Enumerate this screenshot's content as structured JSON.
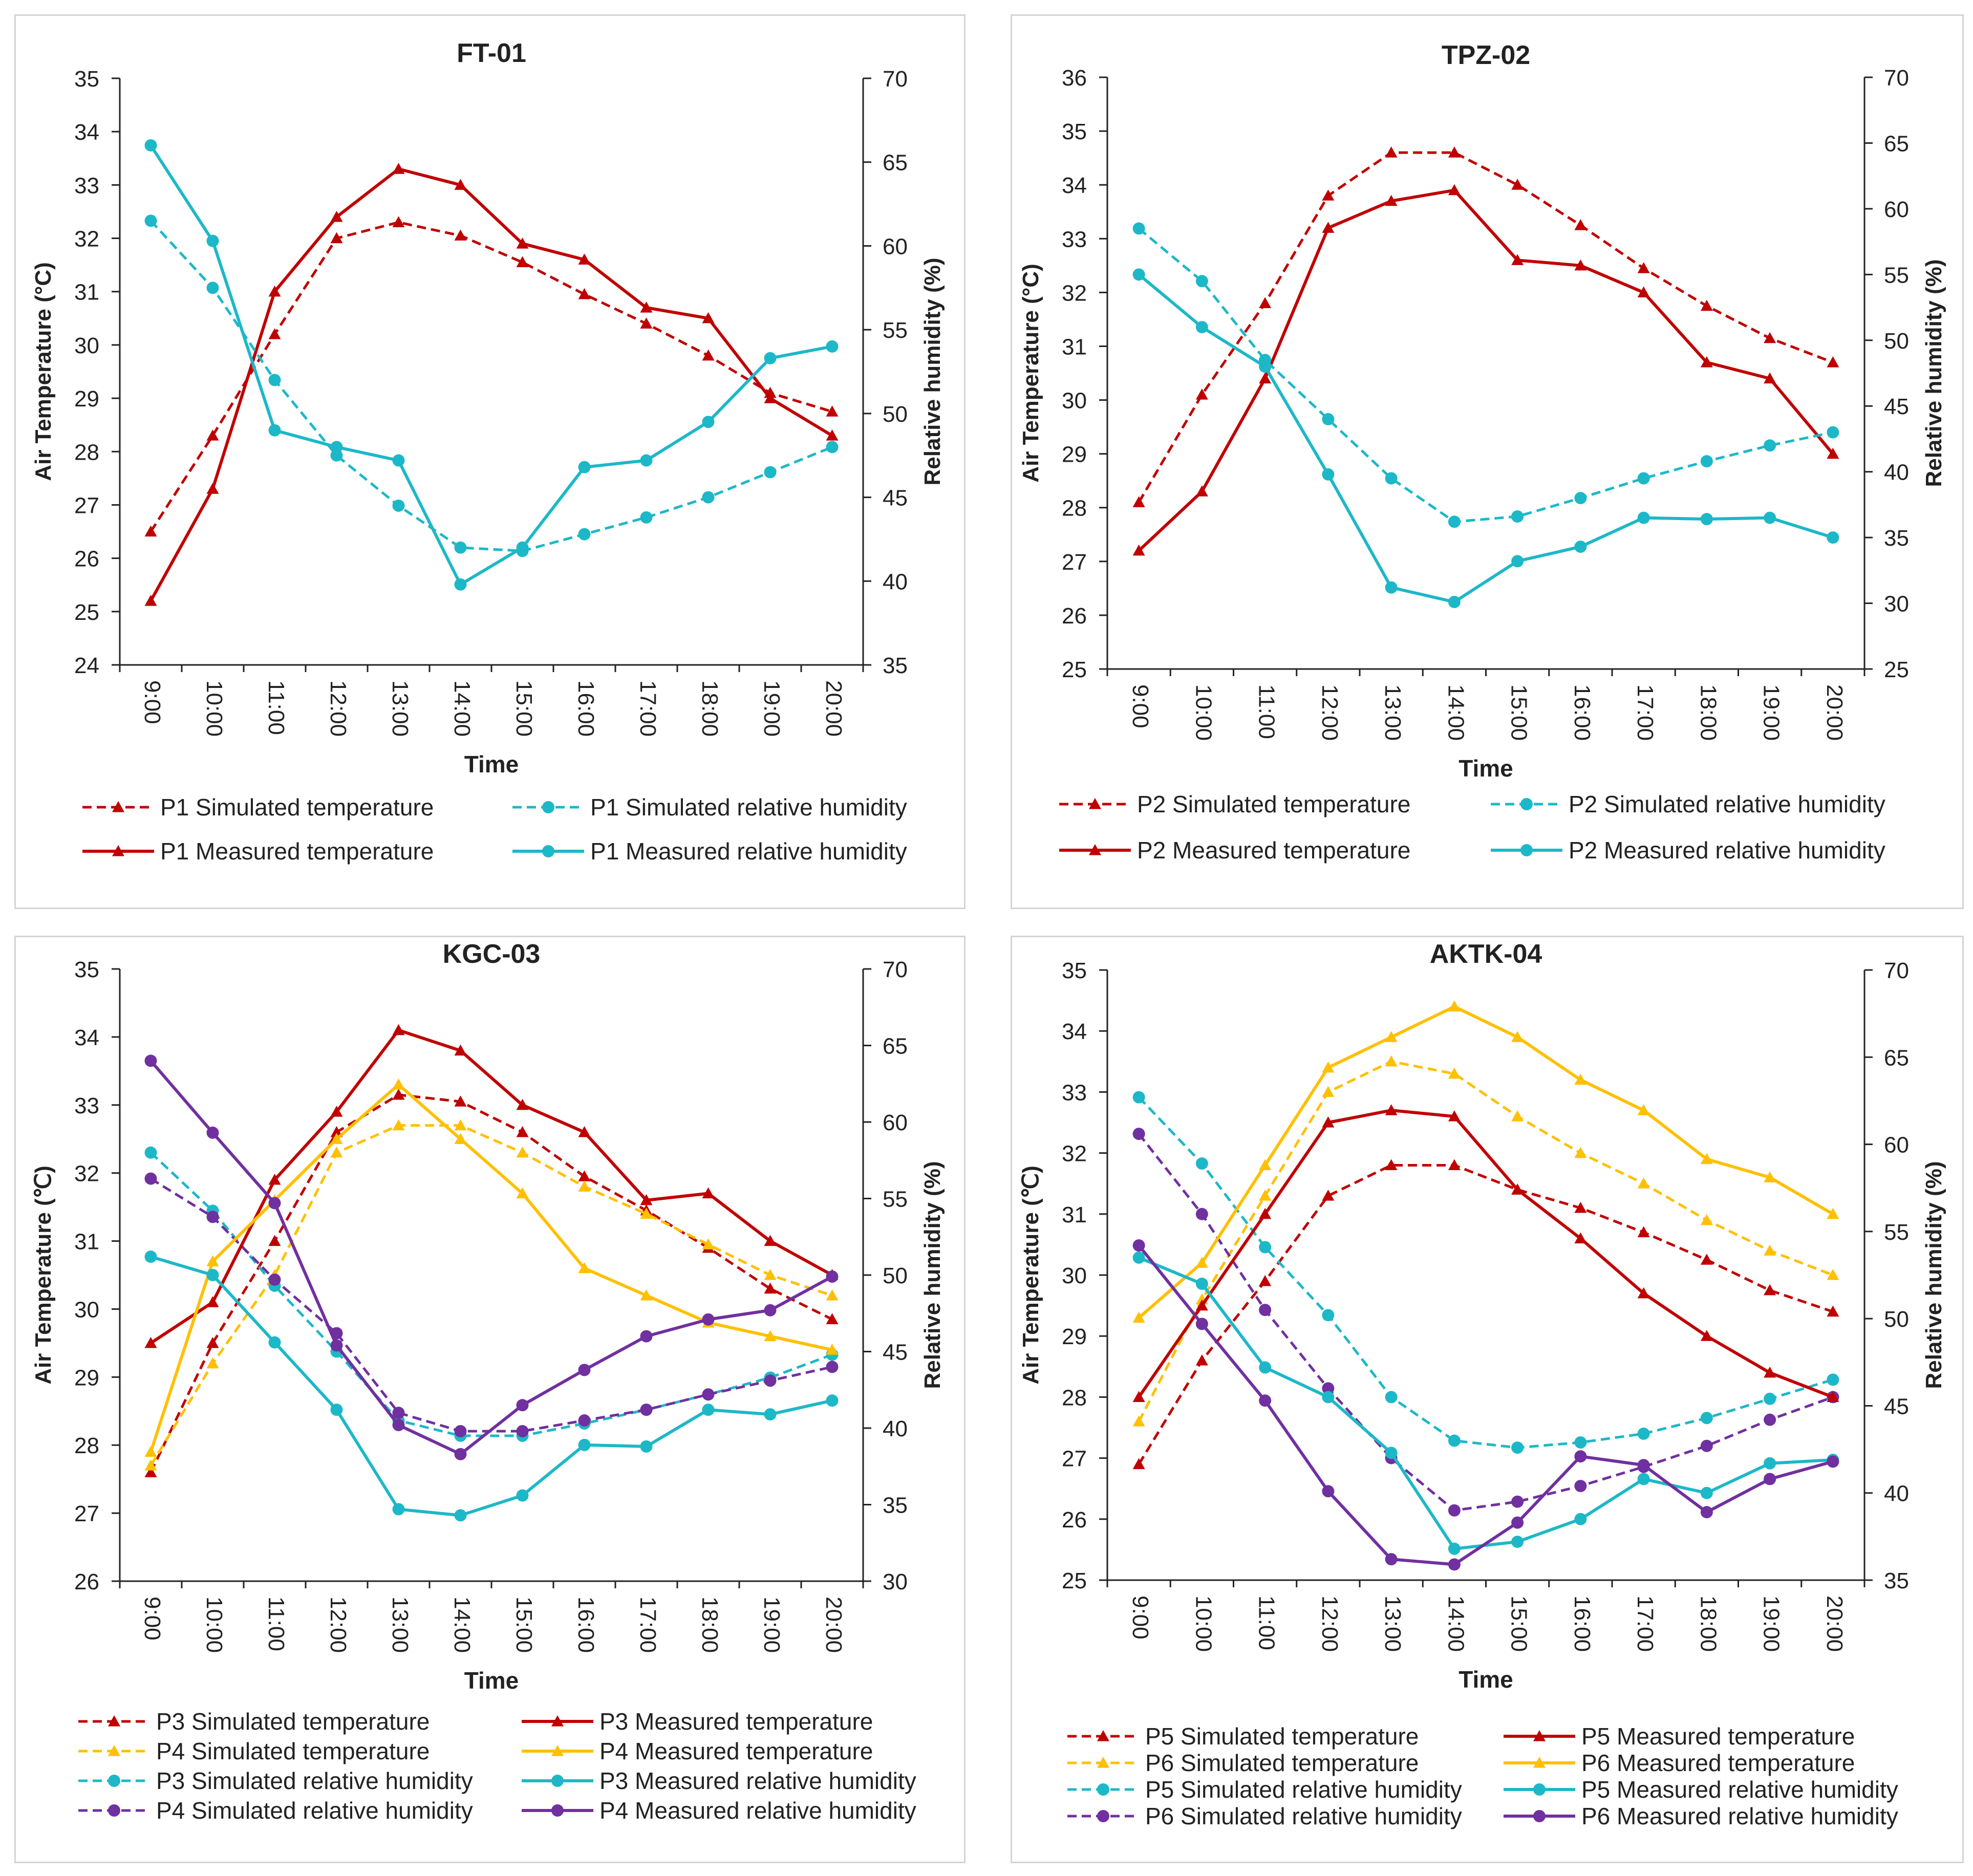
{
  "colors": {
    "red": "#C00000",
    "cyan": "#1CB8C8",
    "yellow": "#FFC000",
    "purple": "#7030A0",
    "axis": "#222222",
    "border": "#d4d4d4"
  },
  "chart_data": [
    {
      "type": "line",
      "title": "FT-01",
      "xlabel": "Time",
      "ylabel": "Air Temperature (°C)",
      "y2label": "Relative humidity (%)",
      "categories": [
        "9:00",
        "10:00",
        "11:00",
        "12:00",
        "13:00",
        "14:00",
        "15:00",
        "16:00",
        "17:00",
        "18:00",
        "19:00",
        "20:00"
      ],
      "ylim": [
        24,
        35
      ],
      "yticks": [
        24,
        25,
        26,
        27,
        28,
        29,
        30,
        31,
        32,
        33,
        34,
        35
      ],
      "y2lim": [
        35,
        70
      ],
      "y2ticks": [
        35,
        40,
        45,
        50,
        55,
        60,
        65,
        70
      ],
      "series": [
        {
          "name": "P1 Simulated temperature",
          "axis": "left",
          "color": "red",
          "dashed": true,
          "marker": "triangle",
          "values": [
            26.5,
            28.3,
            30.2,
            32.0,
            32.3,
            32.05,
            31.55,
            30.95,
            30.4,
            29.8,
            29.1,
            28.75
          ]
        },
        {
          "name": "P1 Measured temperature",
          "axis": "left",
          "color": "red",
          "dashed": false,
          "marker": "triangle",
          "values": [
            25.2,
            27.3,
            31.0,
            32.4,
            33.3,
            33.0,
            31.9,
            31.6,
            30.7,
            30.5,
            29.0,
            28.3
          ]
        },
        {
          "name": "P1 Simulated relative humidity",
          "axis": "right",
          "color": "cyan",
          "dashed": true,
          "marker": "circle",
          "values": [
            61.5,
            57.5,
            52.0,
            47.5,
            44.5,
            42.0,
            41.8,
            42.8,
            43.8,
            45.0,
            46.5,
            48.0
          ]
        },
        {
          "name": "P1 Measured relative humidity",
          "axis": "right",
          "color": "cyan",
          "dashed": false,
          "marker": "circle",
          "values": [
            66.0,
            60.3,
            49.0,
            48.0,
            47.2,
            39.8,
            42.0,
            46.8,
            47.2,
            49.5,
            53.3,
            54.0
          ]
        }
      ]
    },
    {
      "type": "line",
      "title": "TPZ-02",
      "xlabel": "Time",
      "ylabel": "Air Temperature (°C)",
      "y2label": "Relative humidity (%)",
      "categories": [
        "9:00",
        "10:00",
        "11:00",
        "12:00",
        "13:00",
        "14:00",
        "15:00",
        "16:00",
        "17:00",
        "18:00",
        "19:00",
        "20:00"
      ],
      "ylim": [
        25,
        36
      ],
      "yticks": [
        25,
        26,
        27,
        28,
        29,
        30,
        31,
        32,
        33,
        34,
        35,
        36
      ],
      "y2lim": [
        25,
        70
      ],
      "y2ticks": [
        25,
        30,
        35,
        40,
        45,
        50,
        55,
        60,
        65,
        70
      ],
      "series": [
        {
          "name": "P2 Simulated temperature",
          "axis": "left",
          "color": "red",
          "dashed": true,
          "marker": "triangle",
          "values": [
            28.1,
            30.1,
            31.8,
            33.8,
            34.6,
            34.6,
            34.0,
            33.25,
            32.45,
            31.75,
            31.15,
            30.7
          ]
        },
        {
          "name": "P2 Measured temperature",
          "axis": "left",
          "color": "red",
          "dashed": false,
          "marker": "triangle",
          "values": [
            27.2,
            28.3,
            30.4,
            33.2,
            33.7,
            33.9,
            32.6,
            32.5,
            32.0,
            30.7,
            30.4,
            29.0
          ]
        },
        {
          "name": "P2 Simulated relative humidity",
          "axis": "right",
          "color": "cyan",
          "dashed": true,
          "marker": "circle",
          "values": [
            58.5,
            54.5,
            48.5,
            44.0,
            39.5,
            36.2,
            36.6,
            38.0,
            39.5,
            40.8,
            42.0,
            43.0
          ]
        },
        {
          "name": "P2 Measured relative humidity",
          "axis": "right",
          "color": "cyan",
          "dashed": false,
          "marker": "circle",
          "values": [
            55.0,
            51.0,
            48.0,
            39.8,
            31.2,
            30.1,
            33.2,
            34.3,
            36.5,
            36.4,
            36.5,
            35.0
          ]
        }
      ]
    },
    {
      "type": "line",
      "title": "KGC-03",
      "xlabel": "Time",
      "ylabel": "Air Temperature (℃)",
      "y2label": "Relative humidity (%)",
      "categories": [
        "9:00",
        "10:00",
        "11:00",
        "12:00",
        "13:00",
        "14:00",
        "15:00",
        "16:00",
        "17:00",
        "18:00",
        "19:00",
        "20:00"
      ],
      "ylim": [
        26,
        35
      ],
      "yticks": [
        26,
        27,
        28,
        29,
        30,
        31,
        32,
        33,
        34,
        35
      ],
      "y2lim": [
        30,
        70
      ],
      "y2ticks": [
        30,
        35,
        40,
        45,
        50,
        55,
        60,
        65,
        70
      ],
      "series": [
        {
          "name": "P3 Simulated temperature",
          "axis": "left",
          "color": "red",
          "dashed": true,
          "marker": "triangle",
          "values": [
            27.6,
            29.5,
            31.0,
            32.6,
            33.15,
            33.05,
            32.6,
            31.95,
            31.45,
            30.9,
            30.3,
            29.85
          ]
        },
        {
          "name": "P4 Simulated temperature",
          "axis": "left",
          "color": "yellow",
          "dashed": true,
          "marker": "triangle",
          "values": [
            27.7,
            29.2,
            30.5,
            32.3,
            32.7,
            32.7,
            32.3,
            31.8,
            31.4,
            30.95,
            30.5,
            30.2
          ]
        },
        {
          "name": "P3 Simulated relative humidity",
          "axis": "right",
          "color": "cyan",
          "dashed": true,
          "marker": "circle",
          "values": [
            58.0,
            54.2,
            49.3,
            45.0,
            40.5,
            39.5,
            39.5,
            40.3,
            41.2,
            42.2,
            43.3,
            44.8
          ]
        },
        {
          "name": "P4 Simulated relative humidity",
          "axis": "right",
          "color": "purple",
          "dashed": true,
          "marker": "circle",
          "values": [
            56.3,
            53.8,
            49.7,
            46.2,
            41.0,
            39.8,
            39.8,
            40.5,
            41.2,
            42.2,
            43.1,
            44.0
          ]
        },
        {
          "name": "P3 Measured temperature",
          "axis": "left",
          "color": "red",
          "dashed": false,
          "marker": "triangle",
          "values": [
            29.5,
            30.1,
            31.9,
            32.9,
            34.1,
            33.8,
            33.0,
            32.6,
            31.6,
            31.7,
            31.0,
            30.5
          ]
        },
        {
          "name": "P4 Measured temperature",
          "axis": "left",
          "color": "yellow",
          "dashed": false,
          "marker": "triangle",
          "values": [
            27.9,
            30.7,
            31.6,
            32.5,
            33.3,
            32.5,
            31.7,
            30.6,
            30.2,
            29.8,
            29.6,
            29.4
          ]
        },
        {
          "name": "P3 Measured relative humidity",
          "axis": "right",
          "color": "cyan",
          "dashed": false,
          "marker": "circle",
          "values": [
            51.2,
            50.0,
            45.6,
            41.2,
            34.7,
            34.3,
            35.6,
            38.9,
            38.8,
            41.2,
            40.9,
            41.8
          ]
        },
        {
          "name": "P4 Measured relative humidity",
          "axis": "right",
          "color": "purple",
          "dashed": false,
          "marker": "circle",
          "values": [
            64.0,
            59.3,
            54.7,
            45.4,
            40.2,
            38.3,
            41.5,
            43.8,
            46.0,
            47.1,
            47.7,
            49.9
          ]
        }
      ]
    },
    {
      "type": "line",
      "title": "AKTK-04",
      "xlabel": "Time",
      "ylabel": "Air Temperature (℃)",
      "y2label": "Relative humidity (%)",
      "categories": [
        "9:00",
        "10:00",
        "11:00",
        "12:00",
        "13:00",
        "14:00",
        "15:00",
        "16:00",
        "17:00",
        "18:00",
        "19:00",
        "20:00"
      ],
      "ylim": [
        25,
        35
      ],
      "yticks": [
        25,
        26,
        27,
        28,
        29,
        30,
        31,
        32,
        33,
        34,
        35
      ],
      "y2lim": [
        35,
        70
      ],
      "y2ticks": [
        35,
        40,
        45,
        50,
        55,
        60,
        65,
        70
      ],
      "series": [
        {
          "name": "P5 Simulated temperature",
          "axis": "left",
          "color": "red",
          "dashed": true,
          "marker": "triangle",
          "values": [
            26.9,
            28.6,
            29.9,
            31.3,
            31.8,
            31.8,
            31.4,
            31.1,
            30.7,
            30.25,
            29.75,
            29.4
          ]
        },
        {
          "name": "P6 Simulated temperature",
          "axis": "left",
          "color": "yellow",
          "dashed": true,
          "marker": "triangle",
          "values": [
            27.6,
            29.6,
            31.3,
            33.0,
            33.5,
            33.3,
            32.6,
            32.0,
            31.5,
            30.9,
            30.4,
            30.0
          ]
        },
        {
          "name": "P5 Simulated relative humidity",
          "axis": "right",
          "color": "cyan",
          "dashed": true,
          "marker": "circle",
          "values": [
            62.7,
            58.9,
            54.1,
            50.2,
            45.5,
            43.0,
            42.6,
            42.9,
            43.4,
            44.3,
            45.4,
            46.5
          ]
        },
        {
          "name": "P6 Simulated relative humidity",
          "axis": "right",
          "color": "purple",
          "dashed": true,
          "marker": "circle",
          "values": [
            60.6,
            56.0,
            50.5,
            46.0,
            42.0,
            39.0,
            39.5,
            40.4,
            41.5,
            42.7,
            44.2,
            45.5
          ]
        },
        {
          "name": "P5 Measured temperature",
          "axis": "left",
          "color": "red",
          "dashed": false,
          "marker": "triangle",
          "values": [
            28.0,
            29.5,
            31.0,
            32.5,
            32.7,
            32.6,
            31.4,
            30.6,
            29.7,
            29.0,
            28.4,
            28.0
          ]
        },
        {
          "name": "P6 Measured temperature",
          "axis": "left",
          "color": "yellow",
          "dashed": false,
          "marker": "triangle",
          "values": [
            29.3,
            30.2,
            31.8,
            33.4,
            33.9,
            34.4,
            33.9,
            33.2,
            32.7,
            31.9,
            31.6,
            31.0
          ]
        },
        {
          "name": "P5 Measured relative humidity",
          "axis": "right",
          "color": "cyan",
          "dashed": false,
          "marker": "circle",
          "values": [
            53.5,
            52.0,
            47.2,
            45.5,
            42.3,
            36.8,
            37.2,
            38.5,
            40.8,
            40.0,
            41.7,
            41.9
          ]
        },
        {
          "name": "P6 Measured relative humidity",
          "axis": "right",
          "color": "purple",
          "dashed": false,
          "marker": "circle",
          "values": [
            54.2,
            49.7,
            45.3,
            40.1,
            36.2,
            35.9,
            38.3,
            42.1,
            41.6,
            38.9,
            40.8,
            41.8
          ]
        }
      ]
    }
  ]
}
